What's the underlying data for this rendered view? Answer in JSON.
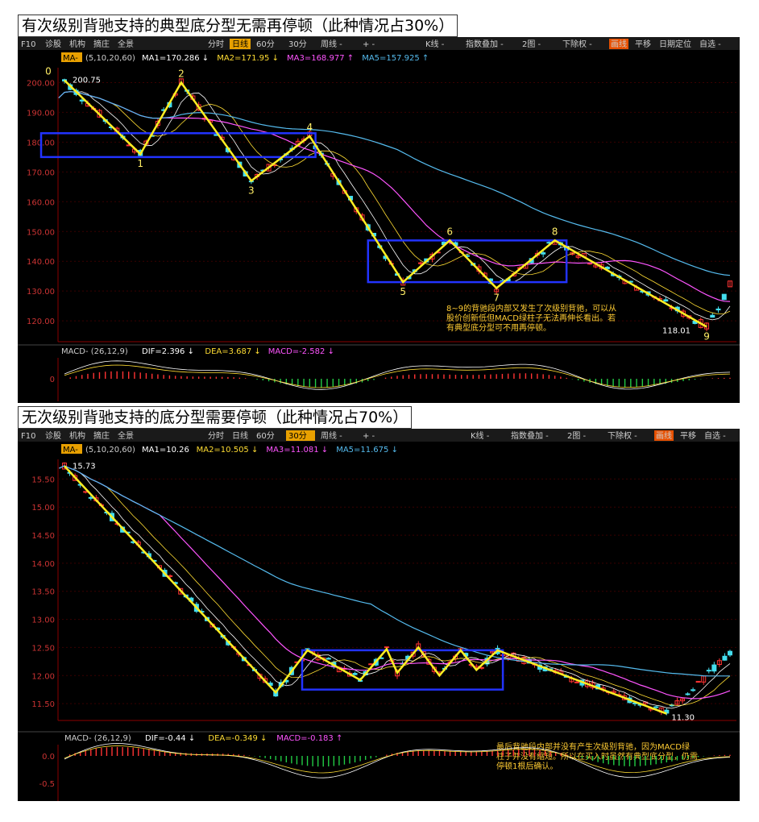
{
  "chart_data": [
    {
      "type": "candlestick",
      "title": "有次级别背驰支持的典型底分型无需再停顿（此种情况占30%）",
      "toolbar": {
        "left": "F10",
        "items": [
          "诊股",
          "机构",
          "摘庄",
          "全景"
        ],
        "periods": [
          "分时",
          "日线",
          "60分",
          "30分",
          "周线 -"
        ],
        "active_period": "日线",
        "zoom": "+  -",
        "right": [
          "K线 -",
          "指数叠加 -",
          "2图 -",
          "下除权 -",
          "画线",
          "平移",
          "日期定位",
          "自选 -"
        ]
      },
      "ma_line": {
        "label": "MA-",
        "params": "(5,10,20,60)",
        "items": [
          {
            "text": "MA1=170.286 ↓",
            "color": "#ffffff"
          },
          {
            "text": "MA2=171.95 ↓",
            "color": "#ffdd33"
          },
          {
            "text": "MA3=168.977 ↑",
            "color": "#ff55ff"
          },
          {
            "text": "MA5=157.925 ↑",
            "color": "#55bbee"
          }
        ]
      },
      "y_ticks": [
        "200.00",
        "190.00",
        "180.00",
        "170.00",
        "160.00",
        "150.00",
        "140.00",
        "130.00",
        "120.00"
      ],
      "ylim": [
        113,
        205
      ],
      "y_ticks_values": [
        200,
        190,
        180,
        170,
        160,
        150,
        140,
        130,
        120
      ],
      "labels": [
        {
          "text": "0",
          "idx": 0
        },
        {
          "text": "1",
          "idx": 1
        },
        {
          "text": "2",
          "idx": 2
        },
        {
          "text": "3",
          "idx": 3
        },
        {
          "text": "4",
          "idx": 4
        },
        {
          "text": "5",
          "idx": 5
        },
        {
          "text": "6",
          "idx": 6
        },
        {
          "text": "7",
          "idx": 7
        },
        {
          "text": "8",
          "idx": 8
        },
        {
          "text": "9",
          "idx": 9
        }
      ],
      "high_label": "200.75",
      "low_label": "118.01",
      "zigzag": [
        {
          "x": 0,
          "y": 200.75
        },
        {
          "x": 13,
          "y": 176
        },
        {
          "x": 20,
          "y": 200
        },
        {
          "x": 32,
          "y": 167
        },
        {
          "x": 42,
          "y": 182
        },
        {
          "x": 58,
          "y": 133
        },
        {
          "x": 66,
          "y": 147
        },
        {
          "x": 74,
          "y": 131
        },
        {
          "x": 84,
          "y": 147
        },
        {
          "x": 110,
          "y": 118
        }
      ],
      "boxes": [
        {
          "x0": -4,
          "x1": 43,
          "y0": 183,
          "y1": 175
        },
        {
          "x0": 52,
          "x1": 86,
          "y0": 147,
          "y1": 133
        }
      ],
      "annotation": "8~9的背驰段内部又发生了次级别背驰，可以从股价创新低但MACD绿柱子无法再伸长看出。若有典型底分型可不用再停顿。",
      "macd": {
        "label": "MACD-",
        "params": "(26,12,9)",
        "items": [
          {
            "text": "DIF=2.396 ↓",
            "color": "#ffffff"
          },
          {
            "text": "DEA=3.687 ↓",
            "color": "#ffdd33"
          },
          {
            "text": "MACD=-2.582 ↓",
            "color": "#ff55ff"
          }
        ],
        "y_ticks": [
          "0"
        ]
      }
    },
    {
      "type": "candlestick",
      "title": "无次级别背驰支持的底分型需要停顿（此种情况占70%）",
      "toolbar": {
        "left": "F10",
        "items": [
          "诊股",
          "机构",
          "摘庄",
          "全景"
        ],
        "periods": [
          "分时",
          "日线",
          "60分",
          "30分",
          "周线 -"
        ],
        "active_period": "30分",
        "zoom": "+  -",
        "right": [
          "K线 -",
          "指数叠加 -",
          "2图 -",
          "下除权 -",
          "画线",
          "平移",
          "自选 -"
        ]
      },
      "ma_line": {
        "label": "MA-",
        "params": "(5,10,20,60)",
        "items": [
          {
            "text": "MA1=10.26",
            "color": "#ffffff"
          },
          {
            "text": "MA2=10.505 ↓",
            "color": "#ffdd33"
          },
          {
            "text": "MA3=11.081 ↓",
            "color": "#ff55ff"
          },
          {
            "text": "MA5=11.675 ↓",
            "color": "#55bbee"
          }
        ]
      },
      "y_ticks": [
        "15.50",
        "15.00",
        "14.50",
        "14.00",
        "13.50",
        "13.00",
        "12.50",
        "12.00",
        "11.50"
      ],
      "ylim": [
        11.2,
        15.85
      ],
      "y_ticks_values": [
        15.5,
        15.0,
        14.5,
        14.0,
        13.5,
        13.0,
        12.5,
        12.0,
        11.5
      ],
      "high_label": "15.73",
      "low_label": "11.30",
      "zigzag": [
        {
          "x": 0,
          "y": 15.73
        },
        {
          "x": 40,
          "y": 11.7
        },
        {
          "x": 46,
          "y": 12.45
        },
        {
          "x": 56,
          "y": 11.92
        },
        {
          "x": 61,
          "y": 12.47
        },
        {
          "x": 63,
          "y": 12.05
        },
        {
          "x": 67,
          "y": 12.5
        },
        {
          "x": 71,
          "y": 12.0
        },
        {
          "x": 75,
          "y": 12.45
        },
        {
          "x": 78,
          "y": 12.1
        },
        {
          "x": 82,
          "y": 12.45
        },
        {
          "x": 114,
          "y": 11.32
        }
      ],
      "boxes": [
        {
          "x0": 45,
          "x1": 83,
          "y0": 12.45,
          "y1": 11.75
        }
      ],
      "annotation": "最后背驰段内部并没有产生次级别背驰，因为MACD绿柱子并没有缩短。所以在买入时虽然有典型底分型，仍需停顿1根后确认。",
      "macd": {
        "label": "MACD-",
        "params": "(26,12,9)",
        "items": [
          {
            "text": "DIF=-0.44 ↓",
            "color": "#ffffff"
          },
          {
            "text": "DEA=-0.349 ↓",
            "color": "#ffdd33"
          },
          {
            "text": "MACD=-0.183 ↑",
            "color": "#ff55ff"
          }
        ],
        "y_ticks": [
          "0.0",
          "-0.5"
        ]
      }
    }
  ]
}
